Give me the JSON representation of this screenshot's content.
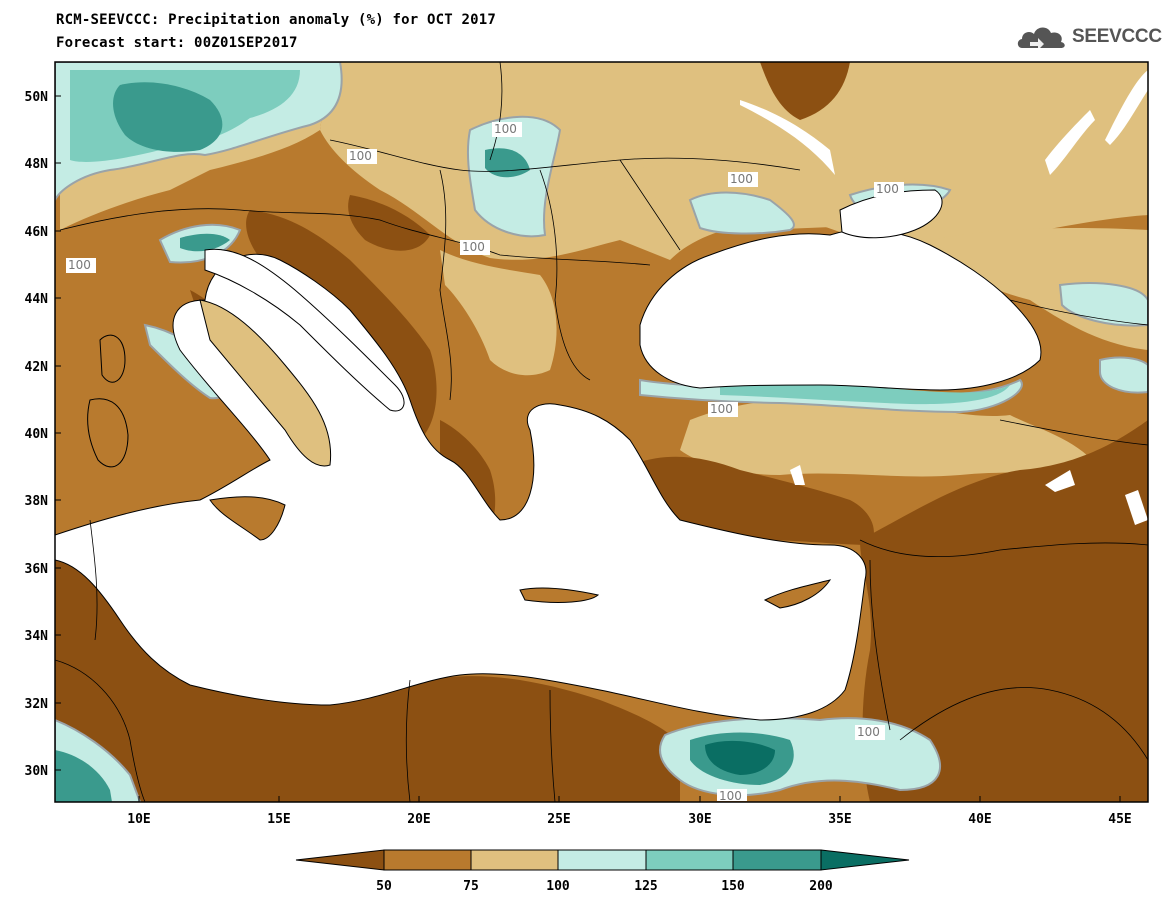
{
  "title": "RCM-SEEVCCC: Precipitation anomaly (%) for OCT 2017",
  "subtitle": "Forecast start: 00Z01SEP2017",
  "brand": {
    "name": "SEEVCCC",
    "icon": "cloud-logo-icon"
  },
  "lat_labels": [
    "50N",
    "48N",
    "46N",
    "44N",
    "42N",
    "40N",
    "38N",
    "36N",
    "34N",
    "32N",
    "30N"
  ],
  "lon_labels": [
    "10E",
    "15E",
    "20E",
    "25E",
    "30E",
    "35E",
    "40E",
    "45E"
  ],
  "contour_label": "100",
  "colorbar": {
    "ticks": [
      "50",
      "75",
      "100",
      "125",
      "150",
      "200"
    ],
    "colors": [
      "#8c5012",
      "#b87a2e",
      "#dfc07f",
      "#c4ece4",
      "#7dcdbe",
      "#3a9a8d",
      "#0a6e63"
    ]
  },
  "colors": {
    "sea": "#ffffff",
    "frame": "#000000",
    "label_box": "#ffffff",
    "contour_100": "#9aa3a8"
  }
}
